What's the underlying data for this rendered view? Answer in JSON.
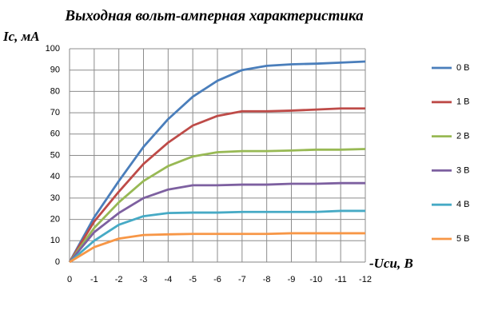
{
  "chart_data": {
    "type": "line",
    "title": "Выходная вольт-амперная характеристика",
    "y_label": "Ic, мА",
    "x_label": "-Uси, В",
    "x": [
      0,
      -1,
      -2,
      -3,
      -4,
      -5,
      -6,
      -7,
      -8,
      -9,
      -10,
      -11,
      -12
    ],
    "xlim": [
      0,
      -12
    ],
    "xticks": [
      0,
      -1,
      -2,
      -3,
      -4,
      -5,
      -6,
      -7,
      -8,
      -9,
      -10,
      -11,
      -12
    ],
    "ylim": [
      0,
      100
    ],
    "yticks": [
      0,
      10,
      20,
      30,
      40,
      50,
      60,
      70,
      80,
      90,
      100
    ],
    "grid": true,
    "legend": "right",
    "series": [
      {
        "name": "0 В",
        "color": "#4a7ebb",
        "values": [
          0,
          21,
          38,
          54,
          67,
          77.5,
          85,
          90,
          92,
          92.7,
          93,
          93.5,
          94
        ]
      },
      {
        "name": "1 В",
        "color": "#be4b48",
        "values": [
          0,
          19,
          33,
          46,
          56,
          64,
          68.5,
          70.7,
          70.7,
          71,
          71.5,
          72,
          72
        ]
      },
      {
        "name": "2 В",
        "color": "#98b954",
        "values": [
          0,
          16,
          28,
          38,
          45,
          49.5,
          51.5,
          52,
          52,
          52.3,
          52.7,
          52.7,
          53
        ]
      },
      {
        "name": "3 В",
        "color": "#7d60a0",
        "values": [
          0,
          14,
          23,
          30,
          34,
          36,
          36,
          36.3,
          36.3,
          36.7,
          36.7,
          37,
          37
        ]
      },
      {
        "name": "4 В",
        "color": "#46aac5",
        "values": [
          0,
          10,
          17.5,
          21.5,
          23,
          23.2,
          23.2,
          23.5,
          23.5,
          23.5,
          23.5,
          24,
          24
        ]
      },
      {
        "name": "5 В",
        "color": "#f79646",
        "values": [
          0,
          7,
          11,
          12.7,
          13,
          13.2,
          13.2,
          13.2,
          13.2,
          13.5,
          13.5,
          13.5,
          13.5
        ]
      }
    ]
  }
}
